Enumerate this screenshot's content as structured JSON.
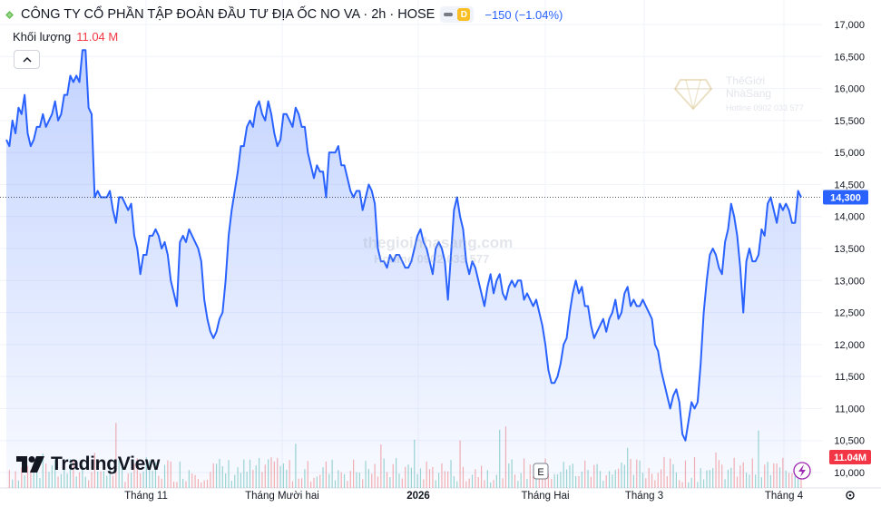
{
  "header": {
    "title": "CÔNG TY CỔ PHẦN TẬP ĐOÀN ĐẦU TƯ ĐỊA ỐC NO VA · 2h · HOSE",
    "badge_letter": "D",
    "change": "−150 (−1.04%)"
  },
  "volume_legend": {
    "label": "Khối lượng",
    "value": "11.04 M"
  },
  "logo_text": "TradingView",
  "watermarks": {
    "center_line1": "thegioinhasang.com",
    "center_line2": "Hotline 0902 033 577",
    "corner_brand1": "ThêGiới",
    "corner_brand2": "NhàSang",
    "corner_hotline": "Hotline 0902 033 577"
  },
  "colors": {
    "line": "#2962ff",
    "area_top": "#2962ff",
    "volume_up": "#26a69a",
    "volume_down": "#ef5350",
    "price_tag": "#2962ff",
    "volume_tag": "#f23645"
  },
  "chart_data": {
    "type": "area",
    "price_axis_ticks": [
      "17,000",
      "16,500",
      "16,000",
      "15,500",
      "15,000",
      "14,500",
      "14,000",
      "13,500",
      "13,000",
      "12,500",
      "12,000",
      "11,500",
      "11,000",
      "10,500",
      "10,000"
    ],
    "ylim": [
      10000,
      17100
    ],
    "time_axis_labels": [
      "Tháng 11",
      "Tháng Mười hai",
      "2026",
      "Tháng Hai",
      "Tháng 3",
      "Tháng 4"
    ],
    "last_price_label": "14,300",
    "last_price": 14300,
    "volume_tag": "11.04M",
    "event_marker": "E",
    "grid": true,
    "series": [
      {
        "values": [
          15200,
          15100,
          15500,
          15300,
          15700,
          15600,
          15900,
          15300,
          15100,
          15200,
          15400,
          15400,
          15600,
          15400,
          15500,
          15600,
          15800,
          15500,
          15600,
          15900,
          15900,
          16200,
          16100,
          16200,
          16100,
          16600,
          16600,
          15700,
          15600,
          14300,
          14400,
          14300,
          14300,
          14300,
          14400,
          14100,
          13900,
          14300,
          14300,
          14200,
          14100,
          14200,
          13700,
          13500,
          13100,
          13400,
          13400,
          13700,
          13700,
          13800,
          13700,
          13500,
          13600,
          13400,
          13000,
          12800,
          12600,
          13600,
          13700,
          13600,
          13800,
          13700,
          13600,
          13500,
          13300,
          12700,
          12400,
          12200,
          12100,
          12200,
          12400,
          12500,
          13000,
          13700,
          14100,
          14400,
          14700,
          15100,
          15100,
          15400,
          15500,
          15400,
          15700,
          15800,
          15600,
          15500,
          15800,
          15600,
          15300,
          15100,
          15200,
          15600,
          15600,
          15500,
          15400,
          15700,
          15600,
          15400,
          15400,
          15000,
          14800,
          14600,
          14800,
          14700,
          14700,
          14300,
          15000,
          15000,
          15000,
          15100,
          14800,
          14800,
          14600,
          14400,
          14300,
          14400,
          14400,
          14100,
          14300,
          14500,
          14400,
          14200,
          13500,
          13300,
          13300,
          13200,
          13400,
          13300,
          13400,
          13400,
          13300,
          13200,
          13200,
          13300,
          13500,
          13700,
          13800,
          13600,
          13500,
          13300,
          13100,
          13500,
          13600,
          13500,
          13300,
          12700,
          13400,
          14100,
          14300,
          14000,
          13800,
          13300,
          13100,
          13300,
          13200,
          13000,
          12800,
          12600,
          12900,
          13100,
          12800,
          13000,
          13100,
          12800,
          12700,
          12900,
          13000,
          12900,
          13000,
          13000,
          12700,
          12800,
          12700,
          12600,
          12700,
          12500,
          12300,
          12000,
          11600,
          11400,
          11400,
          11500,
          11700,
          12000,
          12100,
          12500,
          12800,
          13000,
          12800,
          12900,
          12600,
          12600,
          12300,
          12100,
          12200,
          12300,
          12400,
          12200,
          12400,
          12500,
          12700,
          12400,
          12500,
          12800,
          12900,
          12600,
          12700,
          12600,
          12600,
          12700,
          12600,
          12500,
          12400,
          12000,
          11900,
          11600,
          11400,
          11200,
          11000,
          11200,
          11300,
          11100,
          10600,
          10500,
          10800,
          11100,
          11000,
          11100,
          11700,
          12500,
          13000,
          13400,
          13500,
          13400,
          13200,
          13100,
          13600,
          13800,
          14200,
          14000,
          13700,
          13200,
          12500,
          13300,
          13500,
          13300,
          13300,
          13400,
          13800,
          13700,
          14200,
          14300,
          14100,
          13900,
          14200,
          14100,
          14200,
          14100,
          13900,
          13900,
          14400,
          14300
        ]
      }
    ],
    "volume": {
      "label": "Khối lượng",
      "last": "11.04 M"
    }
  }
}
